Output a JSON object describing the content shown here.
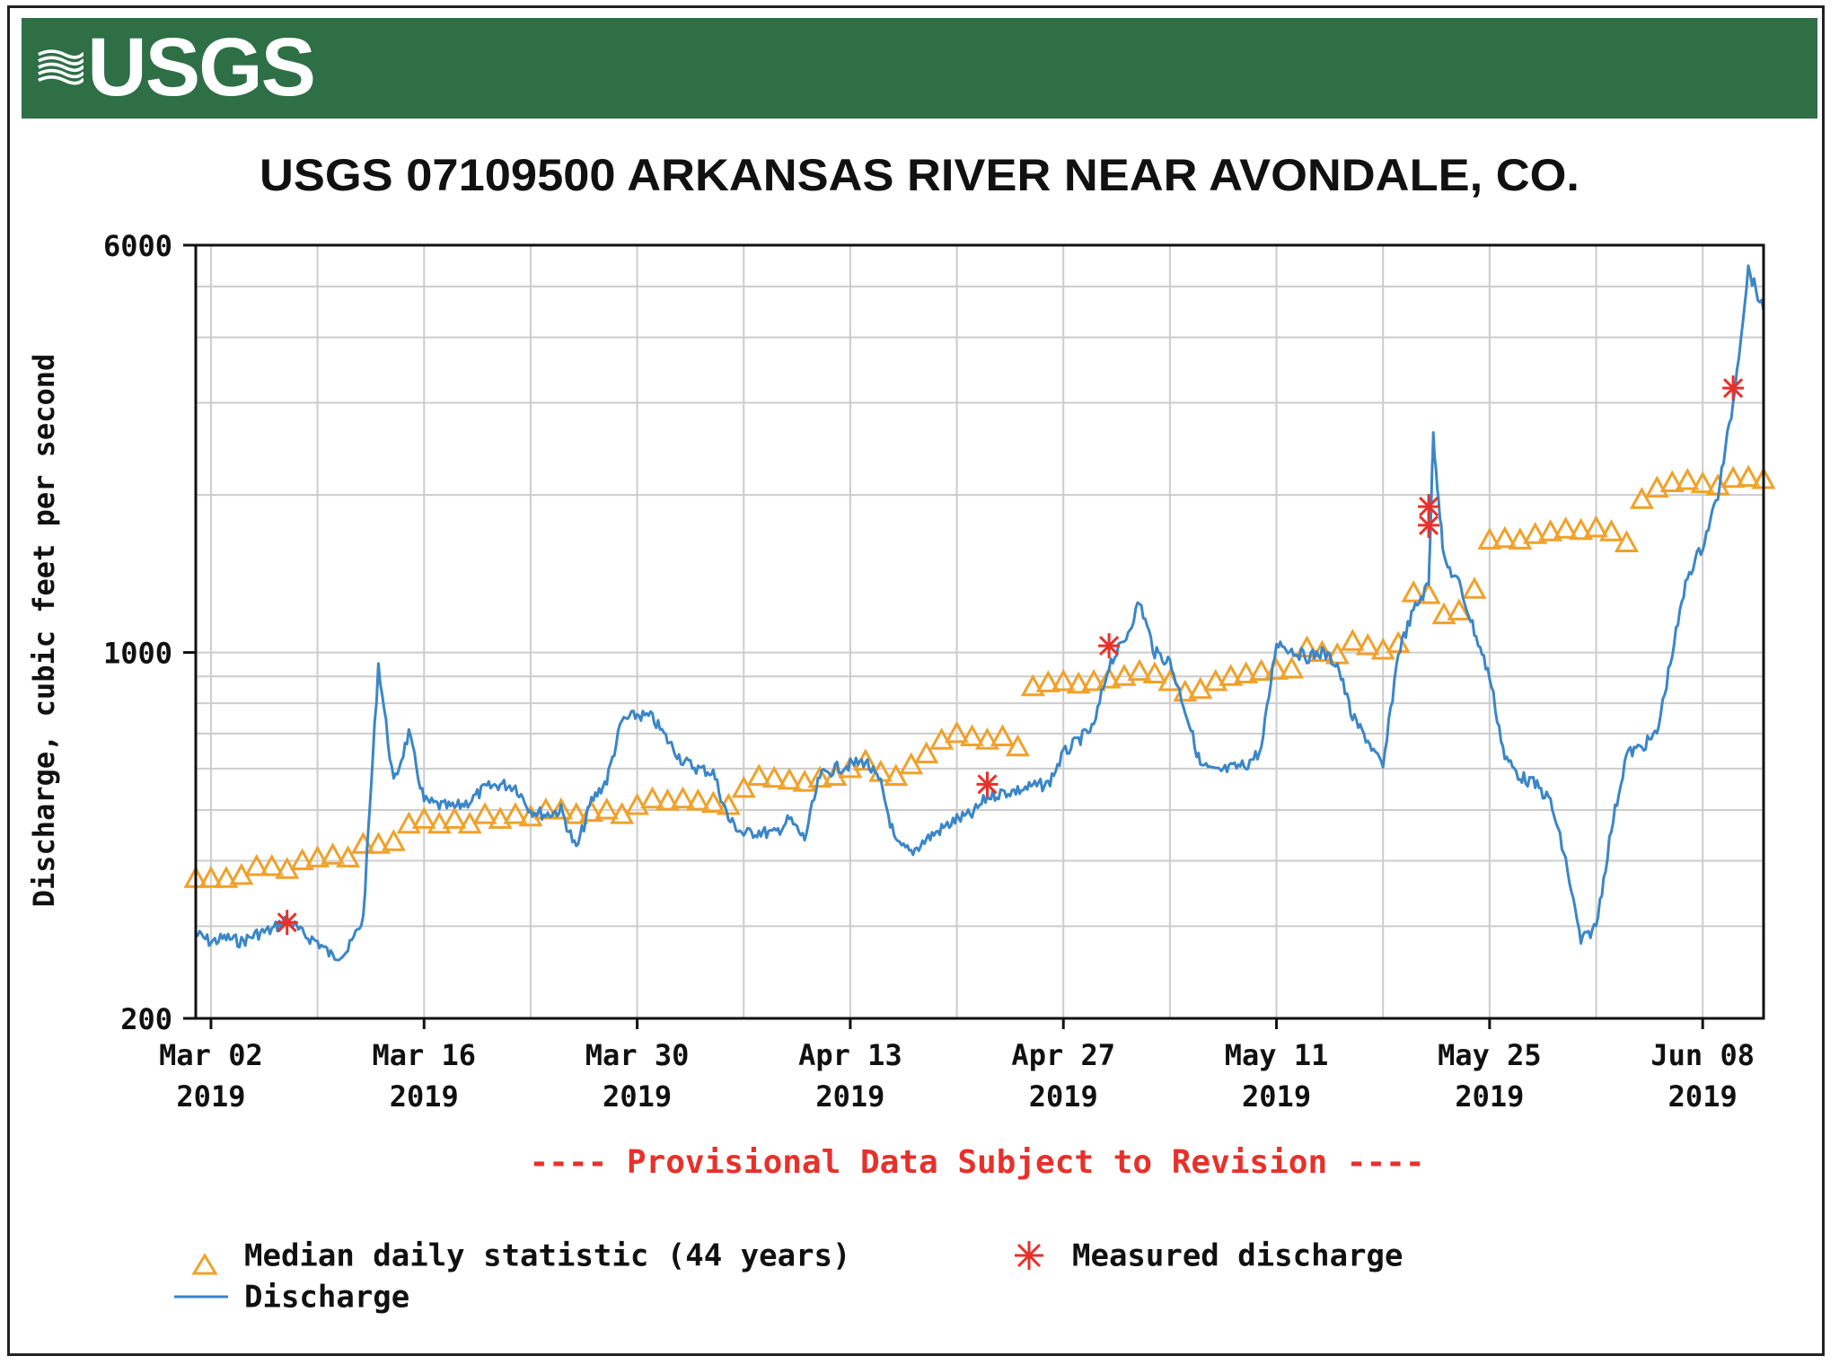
{
  "header": {
    "logo_text": "USGS"
  },
  "colors": {
    "banner": "#2e6f46",
    "discharge": "#3a86c8",
    "median": "#f0a12a",
    "measured": "#e8302a",
    "provisional": "#e8302a",
    "grid": "#cccccc"
  },
  "chart_data": {
    "type": "line",
    "title": "USGS 07109500 ARKANSAS RIVER NEAR AVONDALE, CO.",
    "ylabel": "Discharge, cubic feet per second",
    "xlabel": "",
    "yscale": "log",
    "ylim": [
      200,
      6000
    ],
    "xlim": [
      "2019-03-01",
      "2019-06-12"
    ],
    "y_ticks": [
      200,
      1000,
      6000
    ],
    "x_ticks": [
      {
        "date": "2019-03-02",
        "label": [
          "Mar 02",
          "2019"
        ]
      },
      {
        "date": "2019-03-16",
        "label": [
          "Mar 16",
          "2019"
        ]
      },
      {
        "date": "2019-03-30",
        "label": [
          "Mar 30",
          "2019"
        ]
      },
      {
        "date": "2019-04-13",
        "label": [
          "Apr 13",
          "2019"
        ]
      },
      {
        "date": "2019-04-27",
        "label": [
          "Apr 27",
          "2019"
        ]
      },
      {
        "date": "2019-05-11",
        "label": [
          "May 11",
          "2019"
        ]
      },
      {
        "date": "2019-05-25",
        "label": [
          "May 25",
          "2019"
        ]
      },
      {
        "date": "2019-06-08",
        "label": [
          "Jun 08",
          "2019"
        ]
      }
    ],
    "grid": true,
    "legend_position": "bottom",
    "note": "---- Provisional Data Subject to Revision ----",
    "series": [
      {
        "name": "Median daily statistic (44 years)",
        "kind": "markers-triangle",
        "points": [
          [
            "2019-03-01",
            370
          ],
          [
            "2019-03-02",
            370
          ],
          [
            "2019-03-03",
            370
          ],
          [
            "2019-03-04",
            375
          ],
          [
            "2019-03-05",
            390
          ],
          [
            "2019-03-06",
            390
          ],
          [
            "2019-03-07",
            385
          ],
          [
            "2019-03-08",
            400
          ],
          [
            "2019-03-09",
            405
          ],
          [
            "2019-03-10",
            410
          ],
          [
            "2019-03-11",
            405
          ],
          [
            "2019-03-12",
            430
          ],
          [
            "2019-03-13",
            430
          ],
          [
            "2019-03-14",
            435
          ],
          [
            "2019-03-15",
            470
          ],
          [
            "2019-03-16",
            480
          ],
          [
            "2019-03-17",
            470
          ],
          [
            "2019-03-18",
            480
          ],
          [
            "2019-03-19",
            470
          ],
          [
            "2019-03-20",
            490
          ],
          [
            "2019-03-21",
            480
          ],
          [
            "2019-03-22",
            490
          ],
          [
            "2019-03-23",
            485
          ],
          [
            "2019-03-24",
            500
          ],
          [
            "2019-03-25",
            500
          ],
          [
            "2019-03-26",
            490
          ],
          [
            "2019-03-27",
            495
          ],
          [
            "2019-03-28",
            500
          ],
          [
            "2019-03-29",
            490
          ],
          [
            "2019-03-30",
            510
          ],
          [
            "2019-03-31",
            525
          ],
          [
            "2019-04-01",
            520
          ],
          [
            "2019-04-02",
            525
          ],
          [
            "2019-04-03",
            520
          ],
          [
            "2019-04-04",
            515
          ],
          [
            "2019-04-05",
            510
          ],
          [
            "2019-04-06",
            550
          ],
          [
            "2019-04-07",
            580
          ],
          [
            "2019-04-08",
            575
          ],
          [
            "2019-04-09",
            570
          ],
          [
            "2019-04-10",
            565
          ],
          [
            "2019-04-11",
            575
          ],
          [
            "2019-04-12",
            580
          ],
          [
            "2019-04-13",
            600
          ],
          [
            "2019-04-14",
            620
          ],
          [
            "2019-04-15",
            590
          ],
          [
            "2019-04-16",
            580
          ],
          [
            "2019-04-17",
            610
          ],
          [
            "2019-04-18",
            640
          ],
          [
            "2019-04-19",
            680
          ],
          [
            "2019-04-20",
            700
          ],
          [
            "2019-04-21",
            690
          ],
          [
            "2019-04-22",
            680
          ],
          [
            "2019-04-23",
            690
          ],
          [
            "2019-04-24",
            660
          ],
          [
            "2019-04-25",
            860
          ],
          [
            "2019-04-26",
            875
          ],
          [
            "2019-04-27",
            880
          ],
          [
            "2019-04-28",
            870
          ],
          [
            "2019-04-29",
            880
          ],
          [
            "2019-04-30",
            890
          ],
          [
            "2019-05-01",
            900
          ],
          [
            "2019-05-02",
            920
          ],
          [
            "2019-05-03",
            910
          ],
          [
            "2019-05-04",
            880
          ],
          [
            "2019-05-05",
            840
          ],
          [
            "2019-05-06",
            850
          ],
          [
            "2019-05-07",
            880
          ],
          [
            "2019-05-08",
            900
          ],
          [
            "2019-05-09",
            910
          ],
          [
            "2019-05-10",
            920
          ],
          [
            "2019-05-11",
            925
          ],
          [
            "2019-05-12",
            930
          ],
          [
            "2019-05-13",
            1020
          ],
          [
            "2019-05-14",
            1000
          ],
          [
            "2019-05-15",
            990
          ],
          [
            "2019-05-16",
            1050
          ],
          [
            "2019-05-17",
            1030
          ],
          [
            "2019-05-18",
            1010
          ],
          [
            "2019-05-19",
            1040
          ],
          [
            "2019-05-20",
            1300
          ],
          [
            "2019-05-21",
            1290
          ],
          [
            "2019-05-22",
            1180
          ],
          [
            "2019-05-23",
            1200
          ],
          [
            "2019-05-24",
            1320
          ],
          [
            "2019-05-25",
            1640
          ],
          [
            "2019-05-26",
            1650
          ],
          [
            "2019-05-27",
            1640
          ],
          [
            "2019-05-28",
            1680
          ],
          [
            "2019-05-29",
            1700
          ],
          [
            "2019-05-30",
            1720
          ],
          [
            "2019-05-31",
            1710
          ],
          [
            "2019-06-01",
            1730
          ],
          [
            "2019-06-02",
            1700
          ],
          [
            "2019-06-03",
            1620
          ],
          [
            "2019-06-04",
            1960
          ],
          [
            "2019-06-05",
            2060
          ],
          [
            "2019-06-06",
            2110
          ],
          [
            "2019-06-07",
            2130
          ],
          [
            "2019-06-08",
            2100
          ],
          [
            "2019-06-09",
            2080
          ],
          [
            "2019-06-10",
            2150
          ],
          [
            "2019-06-11",
            2160
          ],
          [
            "2019-06-12",
            2140
          ]
        ]
      },
      {
        "name": "Measured discharge",
        "kind": "markers-asterisk",
        "points": [
          [
            "2019-03-07",
            305
          ],
          [
            "2019-04-22",
            560
          ],
          [
            "2019-04-30",
            1030
          ],
          [
            "2019-05-21",
            1900
          ],
          [
            "2019-05-21",
            1750
          ],
          [
            "2019-06-10",
            3200
          ]
        ]
      },
      {
        "name": "Discharge",
        "kind": "line",
        "points": [
          [
            "2019-03-01",
            290
          ],
          [
            "2019-03-02",
            280
          ],
          [
            "2019-03-03",
            285
          ],
          [
            "2019-03-04",
            280
          ],
          [
            "2019-03-05",
            290
          ],
          [
            "2019-03-06",
            295
          ],
          [
            "2019-03-07",
            310
          ],
          [
            "2019-03-08",
            290
          ],
          [
            "2019-03-09",
            280
          ],
          [
            "2019-03-10",
            262
          ],
          [
            "2019-03-11",
            270
          ],
          [
            "2019-03-12",
            310
          ],
          [
            "2019-03-13",
            950
          ],
          [
            "2019-03-14",
            560
          ],
          [
            "2019-03-15",
            700
          ],
          [
            "2019-03-16",
            520
          ],
          [
            "2019-03-17",
            510
          ],
          [
            "2019-03-18",
            505
          ],
          [
            "2019-03-19",
            520
          ],
          [
            "2019-03-20",
            550
          ],
          [
            "2019-03-21",
            560
          ],
          [
            "2019-03-22",
            555
          ],
          [
            "2019-03-23",
            500
          ],
          [
            "2019-03-24",
            490
          ],
          [
            "2019-03-25",
            500
          ],
          [
            "2019-03-26",
            420
          ],
          [
            "2019-03-27",
            520
          ],
          [
            "2019-03-28",
            570
          ],
          [
            "2019-03-29",
            740
          ],
          [
            "2019-03-30",
            760
          ],
          [
            "2019-03-31",
            750
          ],
          [
            "2019-04-01",
            680
          ],
          [
            "2019-04-02",
            620
          ],
          [
            "2019-04-03",
            600
          ],
          [
            "2019-04-04",
            590
          ],
          [
            "2019-04-05",
            480
          ],
          [
            "2019-04-06",
            450
          ],
          [
            "2019-04-07",
            455
          ],
          [
            "2019-04-08",
            450
          ],
          [
            "2019-04-09",
            480
          ],
          [
            "2019-04-10",
            440
          ],
          [
            "2019-04-11",
            580
          ],
          [
            "2019-04-12",
            600
          ],
          [
            "2019-04-13",
            610
          ],
          [
            "2019-04-14",
            620
          ],
          [
            "2019-04-15",
            560
          ],
          [
            "2019-04-16",
            430
          ],
          [
            "2019-04-17",
            415
          ],
          [
            "2019-04-18",
            440
          ],
          [
            "2019-04-19",
            460
          ],
          [
            "2019-04-20",
            480
          ],
          [
            "2019-04-21",
            490
          ],
          [
            "2019-04-22",
            530
          ],
          [
            "2019-04-23",
            540
          ],
          [
            "2019-04-24",
            545
          ],
          [
            "2019-04-25",
            555
          ],
          [
            "2019-04-26",
            560
          ],
          [
            "2019-04-27",
            640
          ],
          [
            "2019-04-28",
            680
          ],
          [
            "2019-04-29",
            720
          ],
          [
            "2019-04-30",
            950
          ],
          [
            "2019-05-01",
            1050
          ],
          [
            "2019-05-02",
            1250
          ],
          [
            "2019-05-03",
            1000
          ],
          [
            "2019-05-04",
            960
          ],
          [
            "2019-05-05",
            780
          ],
          [
            "2019-05-06",
            610
          ],
          [
            "2019-05-07",
            590
          ],
          [
            "2019-05-08",
            600
          ],
          [
            "2019-05-09",
            610
          ],
          [
            "2019-05-10",
            650
          ],
          [
            "2019-05-11",
            1050
          ],
          [
            "2019-05-12",
            1010
          ],
          [
            "2019-05-13",
            980
          ],
          [
            "2019-05-14",
            1000
          ],
          [
            "2019-05-15",
            950
          ],
          [
            "2019-05-16",
            750
          ],
          [
            "2019-05-17",
            680
          ],
          [
            "2019-05-18",
            600
          ],
          [
            "2019-05-19",
            1000
          ],
          [
            "2019-05-20",
            1200
          ],
          [
            "2019-05-21",
            1350
          ],
          [
            "2019-05-21.3",
            2600
          ],
          [
            "2019-05-22",
            1500
          ],
          [
            "2019-05-23",
            1350
          ],
          [
            "2019-05-24",
            1100
          ],
          [
            "2019-05-25",
            900
          ],
          [
            "2019-05-26",
            630
          ],
          [
            "2019-05-27",
            580
          ],
          [
            "2019-05-28",
            560
          ],
          [
            "2019-05-29",
            520
          ],
          [
            "2019-05-30",
            400
          ],
          [
            "2019-05-31",
            280
          ],
          [
            "2019-06-01",
            300
          ],
          [
            "2019-06-02",
            460
          ],
          [
            "2019-06-03",
            640
          ],
          [
            "2019-06-04",
            660
          ],
          [
            "2019-06-05",
            700
          ],
          [
            "2019-06-06",
            1000
          ],
          [
            "2019-06-07",
            1400
          ],
          [
            "2019-06-08",
            1600
          ],
          [
            "2019-06-09",
            2000
          ],
          [
            "2019-06-10",
            3000
          ],
          [
            "2019-06-11",
            5400
          ],
          [
            "2019-06-12",
            4500
          ]
        ]
      }
    ]
  }
}
